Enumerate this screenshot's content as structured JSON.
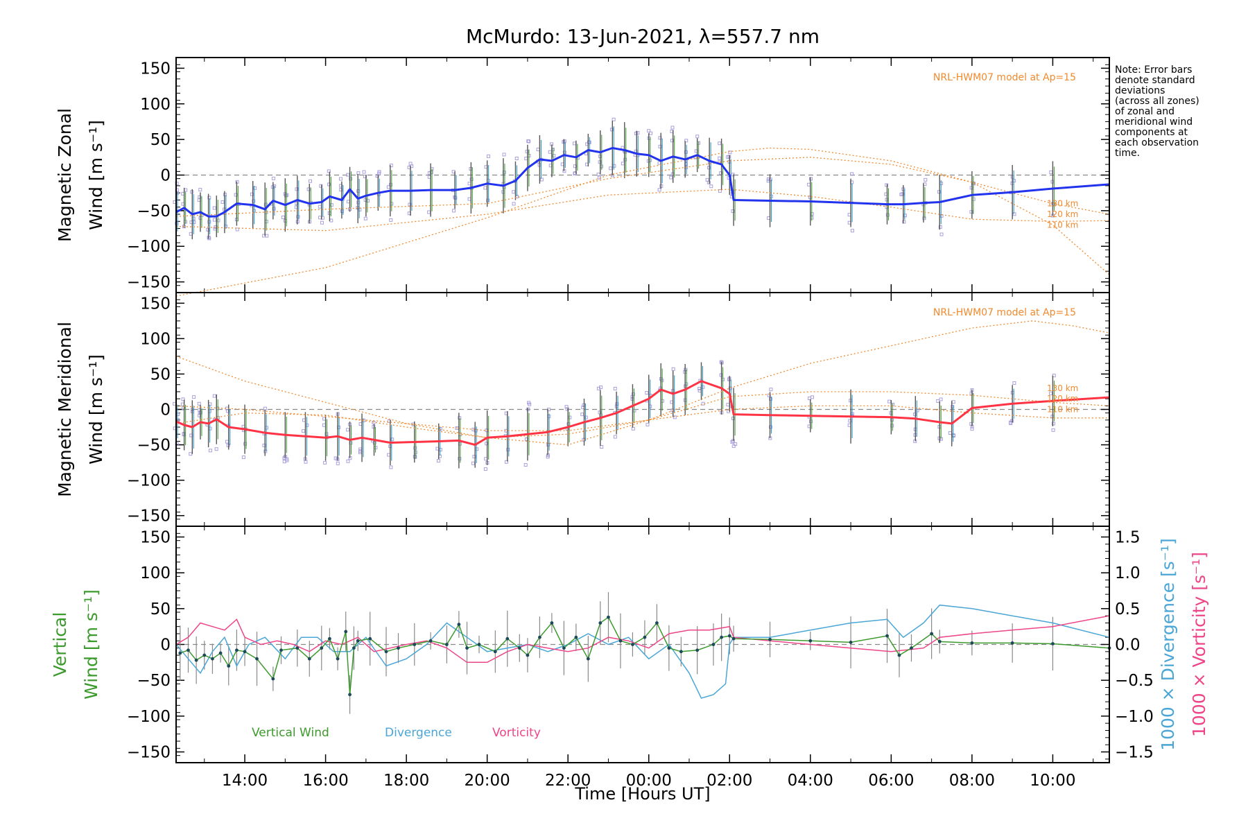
{
  "chart_data": {
    "type": "line",
    "title": "McMurdo: 13-Jun-2021, λ=557.7 nm",
    "xlabel": "Time [Hours UT]",
    "x_unit": "hours since 00:00 UT on 13-Jun-2021",
    "xlim": [
      12.3,
      35.4
    ],
    "xticks": [
      {
        "value": 14,
        "label": "14:00"
      },
      {
        "value": 16,
        "label": "16:00"
      },
      {
        "value": 18,
        "label": "18:00"
      },
      {
        "value": 20,
        "label": "20:00"
      },
      {
        "value": 22,
        "label": "22:00"
      },
      {
        "value": 24,
        "label": "00:00"
      },
      {
        "value": 26,
        "label": "02:00"
      },
      {
        "value": 28,
        "label": "04:00"
      },
      {
        "value": 30,
        "label": "06:00"
      },
      {
        "value": 32,
        "label": "08:00"
      },
      {
        "value": 34,
        "label": "10:00"
      }
    ],
    "note": [
      "Note: Error bars",
      "denote standard",
      "deviations",
      "(across all zones)",
      "of zonal and",
      "meridional wind",
      "components at",
      "each observation",
      "time."
    ],
    "colors": {
      "zonal": "#2233ee",
      "meridional": "#ff3344",
      "model": "#f08a2e",
      "vertical": "#3c9a2c",
      "divergence": "#4aa6d6",
      "vorticity": "#ee4488",
      "scatter": "#a8a0dc",
      "errorbar": "#555555"
    },
    "panels": [
      {
        "id": "zonal",
        "ylabel_top": "Magnetic Zonal",
        "ylabel_bottom": "Wind [m s⁻¹]",
        "ylim": [
          -165,
          165
        ],
        "yticks": [
          -150,
          -100,
          -50,
          0,
          50,
          100,
          150
        ],
        "model_label": "NRL-HWM07 model at Ap=15",
        "altitude_labels": [
          "130 km",
          "120 km",
          "110 km"
        ],
        "series": [
          {
            "name": "Magnetic Zonal Wind",
            "x": [
              12.3,
              12.5,
              12.7,
              12.9,
              13.1,
              13.3,
              13.5,
              13.8,
              14.2,
              14.5,
              14.7,
              15.0,
              15.3,
              15.6,
              15.9,
              16.1,
              16.4,
              16.6,
              16.8,
              17.0,
              17.3,
              17.6,
              18.1,
              18.6,
              19.2,
              19.6,
              20.0,
              20.4,
              20.7,
              21.0,
              21.3,
              21.6,
              21.9,
              22.2,
              22.5,
              22.8,
              23.1,
              23.4,
              23.7,
              24.0,
              24.3,
              24.6,
              24.9,
              25.2,
              25.5,
              25.8,
              26.0,
              26.1,
              27.0,
              28.0,
              29.0,
              29.9,
              30.3,
              30.8,
              31.2,
              32.0,
              33.0,
              34.0,
              35.4
            ],
            "y": [
              -52,
              -46,
              -55,
              -52,
              -58,
              -58,
              -52,
              -40,
              -42,
              -48,
              -36,
              -42,
              -35,
              -40,
              -38,
              -30,
              -35,
              -20,
              -33,
              -29,
              -25,
              -22,
              -22,
              -21,
              -21,
              -18,
              -12,
              -15,
              -8,
              10,
              22,
              20,
              28,
              25,
              35,
              32,
              38,
              35,
              30,
              28,
              20,
              26,
              22,
              28,
              20,
              15,
              0,
              -35,
              -36,
              -37,
              -39,
              -41,
              -41,
              -39,
              -38,
              -28,
              -24,
              -19,
              -13
            ]
          }
        ],
        "model_curves": [
          {
            "altitude": "130 km",
            "x": [
              12.3,
              16,
              20,
              23,
              26,
              27,
              28,
              30,
              32,
              34,
              35.4
            ],
            "y": [
              -170,
              -130,
              -60,
              0,
              33,
              38,
              36,
              20,
              -10,
              -70,
              -140
            ]
          },
          {
            "altitude": "120 km",
            "x": [
              12.3,
              16,
              20,
              23,
              26,
              28,
              30,
              32,
              34,
              35.4
            ],
            "y": [
              -58,
              -48,
              -40,
              -5,
              20,
              25,
              15,
              -10,
              -40,
              -55
            ]
          },
          {
            "altitude": "110 km",
            "x": [
              12.3,
              16,
              20,
              23,
              26,
              28,
              30,
              32,
              34,
              35.4
            ],
            "y": [
              -72,
              -78,
              -55,
              -28,
              -20,
              -30,
              -45,
              -62,
              -65,
              -64
            ]
          }
        ]
      },
      {
        "id": "meridional",
        "ylabel_top": "Magnetic Meridional",
        "ylabel_bottom": "Wind [m s⁻¹]",
        "ylim": [
          -165,
          165
        ],
        "yticks": [
          -150,
          -100,
          -50,
          0,
          50,
          100,
          150
        ],
        "model_label": "NRL-HWM07 model at Ap=15",
        "altitude_labels": [
          "130 km",
          "120 km",
          "110 km"
        ],
        "series": [
          {
            "name": "Magnetic Meridional Wind",
            "x": [
              12.3,
              12.5,
              12.7,
              12.9,
              13.1,
              13.3,
              13.6,
              14.0,
              14.5,
              15.0,
              15.5,
              16.0,
              16.3,
              16.6,
              16.9,
              17.2,
              17.6,
              18.2,
              18.8,
              19.3,
              19.7,
              20.0,
              20.5,
              21.0,
              21.5,
              22.0,
              22.4,
              22.8,
              23.2,
              23.6,
              24.0,
              24.3,
              24.6,
              24.9,
              25.3,
              25.8,
              26.0,
              26.1,
              27.0,
              28.0,
              29.0,
              30.0,
              30.6,
              31.2,
              31.5,
              32.0,
              33.0,
              34.0,
              35.4
            ],
            "y": [
              -17,
              -22,
              -25,
              -18,
              -20,
              -14,
              -25,
              -28,
              -33,
              -36,
              -38,
              -40,
              -38,
              -43,
              -40,
              -43,
              -47,
              -46,
              -45,
              -44,
              -50,
              -40,
              -38,
              -35,
              -32,
              -25,
              -18,
              -12,
              -5,
              5,
              15,
              28,
              22,
              28,
              40,
              30,
              22,
              -7,
              -8,
              -9,
              -10,
              -11,
              -13,
              -18,
              -20,
              2,
              8,
              12,
              17
            ]
          }
        ],
        "model_curves": [
          {
            "altitude": "130 km",
            "x": [
              12.3,
              14,
              16,
              18,
              20,
              22,
              24,
              26,
              28,
              30,
              32,
              33.5,
              34.5,
              35.4
            ],
            "y": [
              75,
              40,
              10,
              -20,
              -40,
              -50,
              -15,
              30,
              65,
              90,
              115,
              125,
              118,
              108
            ]
          },
          {
            "altitude": "120 km",
            "x": [
              12.3,
              14,
              16,
              18,
              20,
              22,
              24,
              26,
              28,
              30,
              32,
              34,
              35.4
            ],
            "y": [
              -20,
              -5,
              -8,
              -25,
              -40,
              -35,
              -15,
              18,
              25,
              25,
              20,
              10,
              5
            ]
          },
          {
            "altitude": "110 km",
            "x": [
              12.3,
              14,
              16,
              18,
              20,
              22,
              24,
              26,
              28,
              30,
              32,
              34,
              35.4
            ],
            "y": [
              5,
              0,
              -10,
              -20,
              -30,
              -30,
              -15,
              0,
              5,
              5,
              -5,
              -12,
              -12
            ]
          }
        ]
      },
      {
        "id": "vertical",
        "ylabel_top": "Vertical",
        "ylabel_bottom": "Wind [m s⁻¹]",
        "ylim": [
          -165,
          165
        ],
        "yticks": [
          -150,
          -100,
          -50,
          0,
          50,
          100,
          150
        ],
        "y2lim": [
          -1.65,
          1.65
        ],
        "y2ticks": [
          -1.5,
          -1.0,
          -0.5,
          0.0,
          0.5,
          1.0,
          1.5
        ],
        "y2ticklabels": [
          "−1.5",
          "−1.0",
          "−0.5",
          "0.0",
          "0.5",
          "1.0",
          "1.5"
        ],
        "y2label_div": "1000 × Divergence [s⁻¹]",
        "y2label_vort": "1000 × Vorticity [s⁻¹]",
        "legend": [
          {
            "label": "Vertical Wind",
            "color": "#3c9a2c"
          },
          {
            "label": "Divergence",
            "color": "#4aa6d6"
          },
          {
            "label": "Vorticity",
            "color": "#ee4488"
          }
        ],
        "series": [
          {
            "name": "Vertical Wind",
            "axis": "left",
            "markers": true,
            "x": [
              12.4,
              12.6,
              12.8,
              13.0,
              13.2,
              13.4,
              13.6,
              13.8,
              14.0,
              14.3,
              14.7,
              14.9,
              15.3,
              15.6,
              15.9,
              16.1,
              16.3,
              16.5,
              16.6,
              16.7,
              16.8,
              17.1,
              17.5,
              17.8,
              18.2,
              18.6,
              19.0,
              19.3,
              19.5,
              19.8,
              20.2,
              20.5,
              20.8,
              21.0,
              21.3,
              21.6,
              21.9,
              22.2,
              22.5,
              22.8,
              23.0,
              23.3,
              23.6,
              23.9,
              24.2,
              24.5,
              24.8,
              25.2,
              25.6,
              25.8,
              26.0,
              26.1,
              27.0,
              28.0,
              29.0,
              29.9,
              30.2,
              30.5,
              31.0,
              31.2,
              32.0,
              33.0,
              34.0,
              35.4
            ],
            "y": [
              -12,
              -8,
              -22,
              -15,
              -20,
              -12,
              -30,
              -8,
              -10,
              -20,
              -48,
              -8,
              -5,
              -20,
              -5,
              8,
              -20,
              18,
              -70,
              -5,
              5,
              8,
              -10,
              -5,
              0,
              5,
              0,
              28,
              -5,
              0,
              -10,
              8,
              -5,
              -15,
              10,
              30,
              -5,
              10,
              -20,
              30,
              38,
              5,
              0,
              10,
              30,
              -5,
              -10,
              -8,
              0,
              10,
              12,
              8,
              7,
              5,
              3,
              12,
              -15,
              -5,
              15,
              4,
              2,
              2,
              1,
              -5
            ]
          },
          {
            "name": "Divergence",
            "axis": "right",
            "x": [
              12.3,
              12.6,
              12.9,
              13.2,
              13.5,
              13.8,
              14.1,
              14.5,
              15.0,
              15.4,
              15.8,
              16.2,
              16.6,
              17.0,
              17.5,
              18.0,
              18.5,
              19.0,
              19.5,
              20.0,
              20.5,
              21.0,
              21.5,
              22.0,
              22.5,
              23.0,
              23.5,
              24.0,
              24.5,
              25.0,
              25.3,
              25.6,
              25.9,
              26.0,
              26.1,
              27.0,
              28.0,
              29.0,
              29.9,
              30.3,
              30.8,
              31.2,
              32.0,
              33.0,
              34.0,
              35.4
            ],
            "y": [
              0.0,
              -0.2,
              -0.4,
              -0.1,
              0.1,
              -0.3,
              0.0,
              0.1,
              -0.2,
              0.1,
              0.1,
              -0.1,
              -0.1,
              0.1,
              -0.3,
              -0.2,
              0.0,
              0.3,
              0.1,
              -0.1,
              -0.05,
              0.0,
              -0.1,
              0.0,
              0.15,
              0.0,
              0.1,
              -0.2,
              0.0,
              -0.4,
              -0.75,
              -0.7,
              -0.55,
              0.0,
              0.1,
              0.1,
              0.2,
              0.3,
              0.35,
              0.1,
              0.3,
              0.55,
              0.5,
              0.4,
              0.3,
              0.1
            ]
          },
          {
            "name": "Vorticity",
            "axis": "right",
            "x": [
              12.3,
              12.6,
              12.9,
              13.2,
              13.5,
              13.8,
              14.0,
              14.4,
              14.8,
              15.2,
              15.6,
              16.0,
              16.4,
              16.8,
              17.2,
              17.6,
              18.0,
              18.5,
              19.0,
              19.5,
              20.0,
              20.5,
              21.0,
              21.5,
              22.0,
              22.5,
              23.0,
              23.5,
              24.0,
              24.5,
              25.0,
              25.5,
              26.0,
              26.1,
              27.0,
              28.0,
              29.0,
              30.0,
              30.8,
              31.2,
              32.0,
              33.0,
              34.0,
              35.4
            ],
            "y": [
              0.0,
              0.1,
              0.3,
              0.25,
              0.2,
              0.35,
              0.1,
              0.0,
              0.05,
              0.0,
              -0.1,
              0.05,
              0.0,
              0.1,
              -0.1,
              -0.05,
              0.0,
              0.05,
              -0.05,
              -0.25,
              -0.25,
              -0.1,
              0.0,
              -0.05,
              -0.1,
              -0.05,
              0.1,
              0.05,
              -0.05,
              0.15,
              0.2,
              0.2,
              0.25,
              0.1,
              0.05,
              0.0,
              -0.05,
              -0.1,
              -0.05,
              0.1,
              0.15,
              0.2,
              0.25,
              0.4
            ]
          }
        ]
      }
    ]
  }
}
